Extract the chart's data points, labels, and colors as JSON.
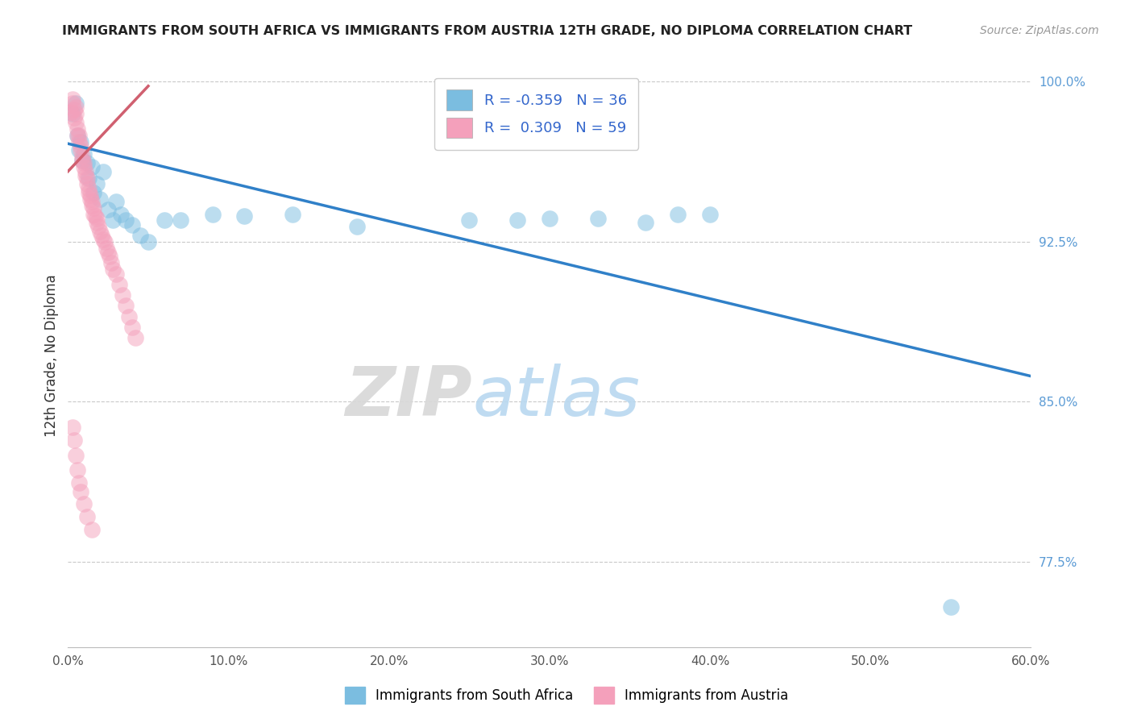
{
  "title": "IMMIGRANTS FROM SOUTH AFRICA VS IMMIGRANTS FROM AUSTRIA 12TH GRADE, NO DIPLOMA CORRELATION CHART",
  "source": "Source: ZipAtlas.com",
  "xlabel_blue": "Immigrants from South Africa",
  "xlabel_pink": "Immigrants from Austria",
  "ylabel": "12th Grade, No Diploma",
  "xlim": [
    0.0,
    0.6
  ],
  "ylim": [
    0.735,
    1.008
  ],
  "yticks": [
    0.775,
    0.85,
    0.925,
    1.0
  ],
  "ytick_labels": [
    "77.5%",
    "85.0%",
    "92.5%",
    "100.0%"
  ],
  "xticks": [
    0.0,
    0.1,
    0.2,
    0.3,
    0.4,
    0.5,
    0.6
  ],
  "xtick_labels": [
    "0.0%",
    "10.0%",
    "20.0%",
    "30.0%",
    "40.0%",
    "50.0%",
    "60.0%"
  ],
  "blue_R": -0.359,
  "blue_N": 36,
  "pink_R": 0.309,
  "pink_N": 59,
  "blue_color": "#7bbde0",
  "pink_color": "#f4a0bb",
  "blue_line_color": "#3080c8",
  "pink_line_color": "#d06070",
  "watermark_zip": "ZIP",
  "watermark_atlas": "atlas",
  "blue_line_x0": 0.0,
  "blue_line_y0": 0.971,
  "blue_line_x1": 0.6,
  "blue_line_y1": 0.862,
  "pink_line_x0": 0.0,
  "pink_line_y0": 0.958,
  "pink_line_x1": 0.05,
  "pink_line_y1": 0.998,
  "blue_scatter_x": [
    0.003,
    0.005,
    0.006,
    0.007,
    0.008,
    0.009,
    0.01,
    0.012,
    0.013,
    0.015,
    0.016,
    0.018,
    0.02,
    0.022,
    0.025,
    0.028,
    0.03,
    0.033,
    0.036,
    0.04,
    0.045,
    0.05,
    0.06,
    0.07,
    0.09,
    0.11,
    0.14,
    0.18,
    0.25,
    0.3,
    0.33,
    0.36,
    0.4,
    0.55,
    0.38,
    0.28
  ],
  "blue_scatter_y": [
    0.985,
    0.99,
    0.975,
    0.968,
    0.972,
    0.963,
    0.966,
    0.962,
    0.955,
    0.96,
    0.948,
    0.952,
    0.945,
    0.958,
    0.94,
    0.935,
    0.944,
    0.938,
    0.935,
    0.933,
    0.928,
    0.925,
    0.935,
    0.935,
    0.938,
    0.937,
    0.938,
    0.932,
    0.935,
    0.936,
    0.936,
    0.934,
    0.938,
    0.754,
    0.938,
    0.935
  ],
  "pink_scatter_x": [
    0.002,
    0.003,
    0.003,
    0.004,
    0.004,
    0.005,
    0.005,
    0.005,
    0.006,
    0.006,
    0.007,
    0.007,
    0.008,
    0.008,
    0.009,
    0.009,
    0.01,
    0.01,
    0.011,
    0.011,
    0.012,
    0.012,
    0.013,
    0.013,
    0.014,
    0.014,
    0.015,
    0.015,
    0.016,
    0.016,
    0.017,
    0.018,
    0.018,
    0.019,
    0.02,
    0.021,
    0.022,
    0.023,
    0.024,
    0.025,
    0.026,
    0.027,
    0.028,
    0.03,
    0.032,
    0.034,
    0.036,
    0.038,
    0.04,
    0.042,
    0.003,
    0.004,
    0.005,
    0.006,
    0.007,
    0.008,
    0.01,
    0.012,
    0.015
  ],
  "pink_scatter_y": [
    0.986,
    0.99,
    0.992,
    0.987,
    0.983,
    0.988,
    0.985,
    0.981,
    0.978,
    0.975,
    0.975,
    0.972,
    0.97,
    0.968,
    0.965,
    0.963,
    0.962,
    0.96,
    0.958,
    0.956,
    0.955,
    0.952,
    0.95,
    0.948,
    0.947,
    0.945,
    0.944,
    0.942,
    0.941,
    0.938,
    0.937,
    0.936,
    0.934,
    0.932,
    0.93,
    0.928,
    0.926,
    0.925,
    0.922,
    0.92,
    0.918,
    0.915,
    0.912,
    0.91,
    0.905,
    0.9,
    0.895,
    0.89,
    0.885,
    0.88,
    0.838,
    0.832,
    0.825,
    0.818,
    0.812,
    0.808,
    0.802,
    0.796,
    0.79
  ]
}
